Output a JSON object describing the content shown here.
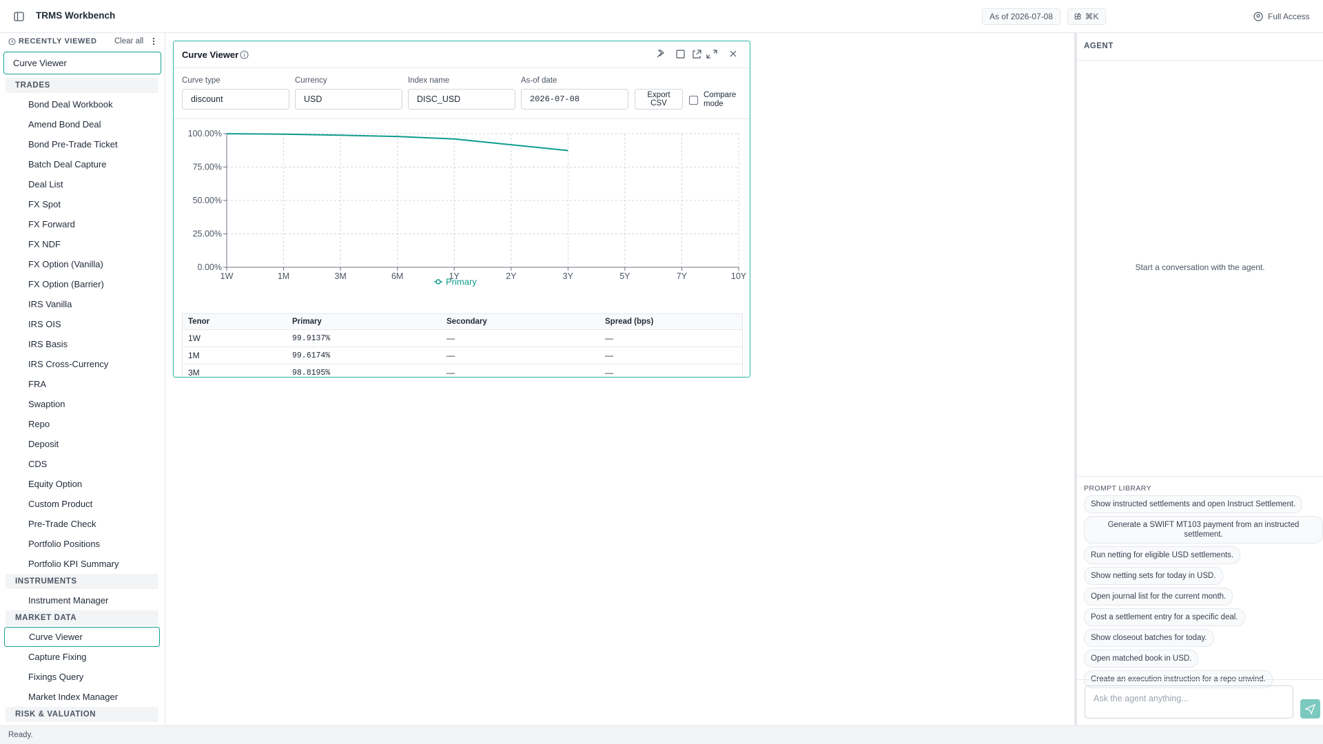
{
  "header": {
    "title": "TRMS Workbench",
    "as_of": "As of 2026-07-08",
    "shortcut": "⌘K",
    "access": "Full Access"
  },
  "sidebar": {
    "recent_title": "RECENTLY VIEWED",
    "clear": "Clear all",
    "recent": [
      "Curve Viewer"
    ],
    "sections": [
      {
        "title": "TRADES",
        "items": [
          "Bond Deal Workbook",
          "Amend Bond Deal",
          "Bond Pre-Trade Ticket",
          "Batch Deal Capture",
          "Deal List",
          "FX Spot",
          "FX Forward",
          "FX NDF",
          "FX Option (Vanilla)",
          "FX Option (Barrier)",
          "IRS Vanilla",
          "IRS OIS",
          "IRS Basis",
          "IRS Cross-Currency",
          "FRA",
          "Swaption",
          "Repo",
          "Deposit",
          "CDS",
          "Equity Option",
          "Custom Product",
          "Pre-Trade Check",
          "Portfolio Positions",
          "Portfolio KPI Summary"
        ]
      },
      {
        "title": "INSTRUMENTS",
        "items": [
          "Instrument Manager"
        ]
      },
      {
        "title": "MARKET DATA",
        "items": [
          "Curve Viewer",
          "Capture Fixing",
          "Fixings Query",
          "Market Index Manager"
        ]
      },
      {
        "title": "RISK & VALUATION",
        "items": []
      }
    ]
  },
  "panel": {
    "title": "Curve Viewer",
    "fields": [
      {
        "label": "Curve type",
        "value": "discount"
      },
      {
        "label": "Currency",
        "value": "USD"
      },
      {
        "label": "Index name",
        "value": "DISC_USD"
      },
      {
        "label": "As-of date",
        "value": "2026-07-08"
      }
    ],
    "export": "Export CSV",
    "compare": "Compare mode",
    "table": {
      "columns": [
        "Tenor",
        "Primary",
        "Secondary",
        "Spread (bps)"
      ],
      "rows": [
        [
          "1W",
          "99.9137%",
          "—",
          "—"
        ],
        [
          "1M",
          "99.6174%",
          "—",
          "—"
        ],
        [
          "3M",
          "98.8195%",
          "—",
          "—"
        ]
      ]
    }
  },
  "chart_data": {
    "type": "line",
    "categories": [
      "1W",
      "1M",
      "3M",
      "6M",
      "1Y",
      "2Y",
      "3Y",
      "5Y",
      "7Y",
      "10Y"
    ],
    "series": [
      {
        "name": "Primary",
        "color": "#0f9b8e",
        "values": [
          99.9137,
          99.6174,
          98.8195,
          97.9,
          96.0,
          91.7,
          87.4,
          null,
          null,
          null
        ]
      }
    ],
    "ylim": [
      0,
      100
    ],
    "yticks": [
      {
        "value": 0,
        "label": "0.00%"
      },
      {
        "value": 25,
        "label": "25.00%"
      },
      {
        "value": 50,
        "label": "50.00%"
      },
      {
        "value": 75,
        "label": "75.00%"
      },
      {
        "value": 100,
        "label": "100.00%"
      }
    ],
    "grid": true,
    "legend": "bottom"
  },
  "agent": {
    "title": "AGENT",
    "empty": "Start a conversation with the agent.",
    "library_title": "PROMPT LIBRARY",
    "prompts": [
      "Show instructed settlements and open Instruct Settlement.",
      "Generate a SWIFT MT103 payment from an instructed settlement.",
      "Run netting for eligible USD settlements.",
      "Show netting sets for today in USD.",
      "Open journal list for the current month.",
      "Post a settlement entry for a specific deal.",
      "Show closeout batches for today.",
      "Open matched book in USD.",
      "Create an execution instruction for a repo unwind."
    ],
    "input_placeholder": "Ask the agent anything..."
  },
  "status": "Ready."
}
